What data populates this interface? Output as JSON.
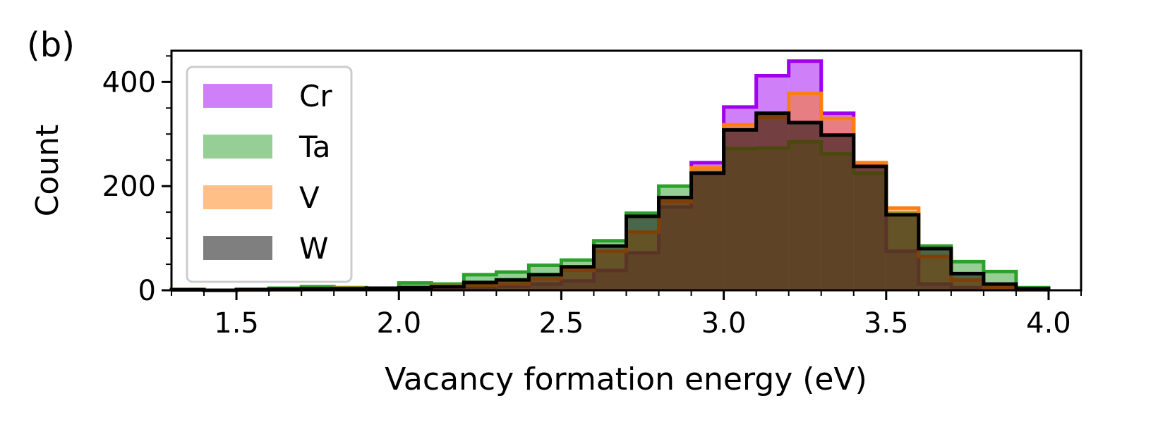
{
  "panel_label": "(b)",
  "chart_data": {
    "type": "histogram",
    "title": "",
    "xlabel": "Vacancy formation energy (eV)",
    "ylabel": "Count",
    "xlim": [
      1.3,
      4.1
    ],
    "ylim": [
      0,
      460
    ],
    "xticks": [
      1.5,
      2.0,
      2.5,
      3.0,
      3.5,
      4.0
    ],
    "xtick_labels": [
      "1.5",
      "2.0",
      "2.5",
      "3.0",
      "3.5",
      "4.0"
    ],
    "yticks": [
      0,
      200,
      400
    ],
    "ytick_labels": [
      "0",
      "200",
      "400"
    ],
    "grid": false,
    "legend_position": "upper-left",
    "bin_edges": [
      1.3,
      1.4,
      1.5,
      1.6,
      1.7,
      1.8,
      1.9,
      2.0,
      2.1,
      2.2,
      2.3,
      2.4,
      2.5,
      2.6,
      2.7,
      2.8,
      2.9,
      3.0,
      3.1,
      3.2,
      3.3,
      3.4,
      3.5,
      3.6,
      3.7,
      3.8,
      3.9,
      4.0
    ],
    "series": [
      {
        "name": "Cr",
        "color": "#a000f0",
        "fill_opacity": 0.5,
        "counts": [
          1,
          0,
          1,
          1,
          2,
          2,
          3,
          4,
          5,
          6,
          8,
          12,
          18,
          38,
          72,
          160,
          245,
          352,
          412,
          440,
          340,
          240,
          75,
          12,
          5,
          2,
          1
        ]
      },
      {
        "name": "Ta",
        "color": "#2ca02c",
        "fill_opacity": 0.5,
        "counts": [
          1,
          0,
          2,
          4,
          7,
          5,
          4,
          14,
          12,
          30,
          35,
          48,
          58,
          95,
          148,
          200,
          235,
          272,
          273,
          285,
          262,
          225,
          148,
          85,
          55,
          36,
          5
        ]
      },
      {
        "name": "V",
        "color": "#ff7f0e",
        "fill_opacity": 0.5,
        "counts": [
          2,
          0,
          1,
          2,
          3,
          4,
          4,
          6,
          8,
          10,
          12,
          22,
          38,
          75,
          112,
          170,
          235,
          318,
          332,
          378,
          330,
          245,
          158,
          65,
          20,
          5,
          2
        ]
      },
      {
        "name": "W",
        "color": "#000000",
        "fill_opacity": 0.5,
        "counts": [
          1,
          0,
          1,
          2,
          3,
          3,
          4,
          5,
          7,
          15,
          20,
          30,
          45,
          85,
          142,
          178,
          225,
          308,
          340,
          322,
          298,
          238,
          145,
          80,
          32,
          12,
          3
        ]
      }
    ]
  }
}
